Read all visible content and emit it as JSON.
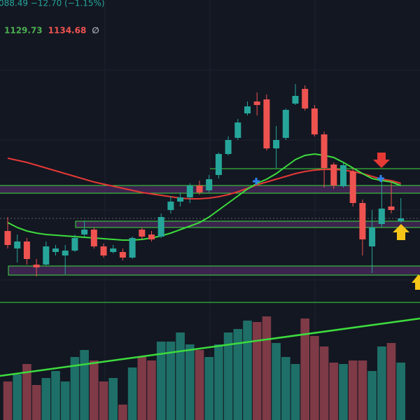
{
  "chart_data": {
    "type": "candlestick",
    "quote": "088.49  −12.70 (−1.15%)",
    "quote_color": "#26a69a",
    "legend": [
      {
        "text": "1129.73",
        "color": "#4caf50"
      },
      {
        "text": "1134.68",
        "color": "#ef5350"
      },
      {
        "text": "∅",
        "color": "#b2b5be"
      }
    ],
    "up_color": "#26a69a",
    "down_color": "#ef5350",
    "ylim": [
      1000,
      1400
    ],
    "open": [
      1070,
      1045,
      1055,
      1022,
      1022,
      1040,
      1035,
      1042,
      1065,
      1072,
      1048,
      1040,
      1040,
      1032,
      1072,
      1065,
      1062,
      1100,
      1112,
      1118,
      1135,
      1128,
      1150,
      1180,
      1203,
      1238,
      1255,
      1258,
      1188,
      1203,
      1252,
      1273,
      1245,
      1208,
      1165,
      1134,
      1155,
      1110,
      1048,
      1080,
      1105,
      1084
    ],
    "high": [
      1090,
      1065,
      1060,
      1030,
      1055,
      1050,
      1050,
      1065,
      1085,
      1075,
      1052,
      1050,
      1045,
      1062,
      1075,
      1070,
      1095,
      1120,
      1125,
      1138,
      1142,
      1150,
      1182,
      1205,
      1230,
      1255,
      1268,
      1265,
      1220,
      1245,
      1280,
      1278,
      1250,
      1212,
      1168,
      1168,
      1160,
      1115,
      1100,
      1145,
      1140,
      1117
    ],
    "low": [
      1045,
      1025,
      1022,
      1005,
      1020,
      1035,
      1008,
      1040,
      1062,
      1045,
      1032,
      1038,
      1028,
      1030,
      1058,
      1055,
      1060,
      1095,
      1105,
      1110,
      1122,
      1125,
      1145,
      1178,
      1200,
      1235,
      1235,
      1185,
      1160,
      1200,
      1250,
      1242,
      1205,
      1132,
      1130,
      1132,
      1105,
      1035,
      1010,
      1075,
      1095,
      1082
    ],
    "close": [
      1050,
      1055,
      1030,
      1018,
      1048,
      1045,
      1042,
      1060,
      1072,
      1048,
      1035,
      1045,
      1032,
      1060,
      1062,
      1058,
      1090,
      1112,
      1118,
      1135,
      1125,
      1144,
      1180,
      1200,
      1225,
      1248,
      1250,
      1188,
      1200,
      1243,
      1263,
      1245,
      1208,
      1160,
      1135,
      1164,
      1110,
      1058,
      1075,
      1102,
      1100,
      1088
    ],
    "moving_averages": [
      {
        "color": "#e53935",
        "values": [
          1174,
          1171,
          1168,
          1164,
          1160,
          1156,
          1152,
          1148,
          1144,
          1140,
          1137,
          1134,
          1131,
          1128,
          1125,
          1123,
          1121,
          1119,
          1117,
          1116,
          1116,
          1117,
          1119,
          1122,
          1126,
          1131,
          1136,
          1140,
          1144,
          1148,
          1152,
          1155,
          1157,
          1158,
          1158,
          1157,
          1155,
          1152,
          1148,
          1144,
          1142,
          1138
        ]
      },
      {
        "color": "#3ddc3d",
        "values": [
          1082,
          1075,
          1070,
          1067,
          1065,
          1064,
          1063,
          1062,
          1061,
          1060,
          1059,
          1058,
          1057,
          1057,
          1058,
          1060,
          1063,
          1067,
          1072,
          1077,
          1082,
          1090,
          1100,
          1110,
          1120,
          1130,
          1138,
          1144,
          1152,
          1162,
          1172,
          1178,
          1180,
          1178,
          1175,
          1168,
          1160,
          1152,
          1145,
          1142,
          1140,
          1135
        ]
      }
    ],
    "volume": {
      "ylim": [
        0,
        170
      ],
      "up_color": "#1e6f67",
      "down_color": "#7e3a46",
      "values": [
        55,
        65,
        80,
        50,
        60,
        70,
        55,
        90,
        100,
        85,
        55,
        60,
        22,
        75,
        90,
        85,
        112,
        112,
        125,
        108,
        100,
        90,
        108,
        125,
        130,
        142,
        140,
        148,
        110,
        90,
        80,
        145,
        120,
        105,
        82,
        80,
        85,
        85,
        70,
        105,
        110,
        82
      ]
    }
  }
}
